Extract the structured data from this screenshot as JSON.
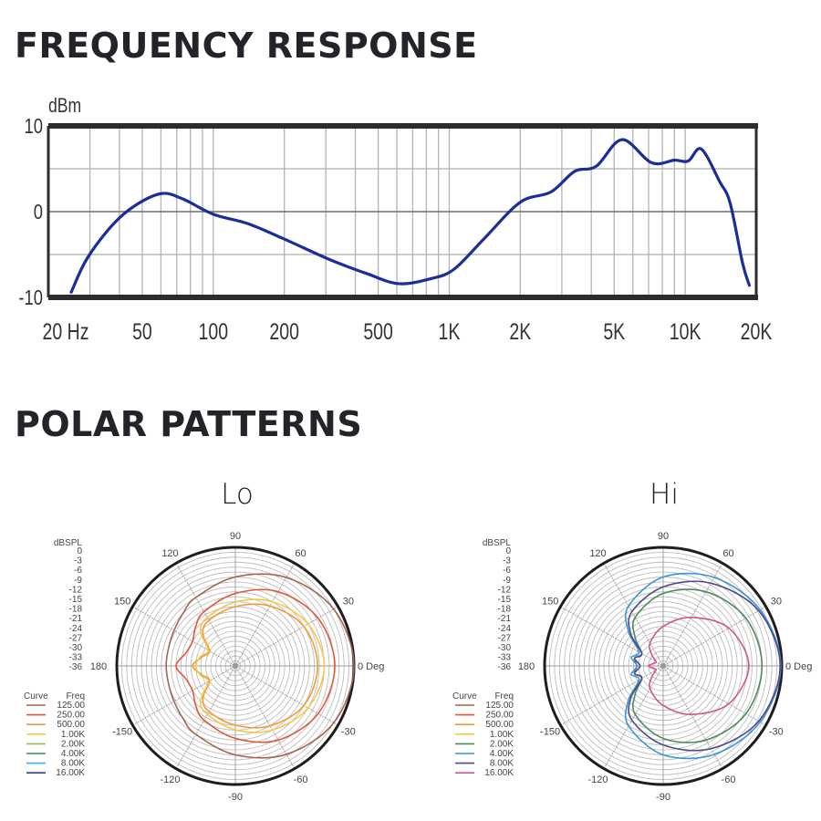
{
  "headings": {
    "frequency": "FREQUENCY RESPONSE",
    "polar": "POLAR PATTERNS"
  },
  "chart_data": [
    {
      "type": "line",
      "title": "FREQUENCY RESPONSE",
      "xlabel": "",
      "ylabel": "dBm",
      "xscale": "log",
      "xlim": [
        20,
        20000
      ],
      "ylim": [
        -10,
        10
      ],
      "grid": true,
      "yticks": [
        {
          "v": 10,
          "label": "10"
        },
        {
          "v": 0,
          "label": "0"
        },
        {
          "v": -10,
          "label": "-10"
        }
      ],
      "xticks": [
        {
          "v": 20,
          "label": "20 Hz"
        },
        {
          "v": 50,
          "label": "50"
        },
        {
          "v": 100,
          "label": "100"
        },
        {
          "v": 200,
          "label": "200"
        },
        {
          "v": 500,
          "label": "500"
        },
        {
          "v": 1000,
          "label": "1K"
        },
        {
          "v": 2000,
          "label": "2K"
        },
        {
          "v": 5000,
          "label": "5K"
        },
        {
          "v": 10000,
          "label": "10K"
        },
        {
          "v": 20000,
          "label": "20K"
        }
      ],
      "color": "#1a2d9a",
      "x": [
        25,
        29,
        37,
        46,
        60,
        74,
        100,
        140,
        200,
        312,
        445,
        610,
        840,
        1050,
        1400,
        2000,
        2700,
        3400,
        4200,
        5400,
        7200,
        9000,
        10300,
        11700,
        14000,
        15500,
        17500,
        18700
      ],
      "y": [
        -9.4,
        -5.6,
        -1.7,
        0.6,
        2.1,
        1.5,
        -0.3,
        -1.4,
        -3.2,
        -5.6,
        -7.2,
        -8.4,
        -7.8,
        -6.7,
        -3.2,
        1.1,
        2.3,
        4.7,
        5.3,
        8.4,
        5.7,
        6.0,
        5.9,
        7.3,
        3.5,
        1.0,
        -6.0,
        -8.6
      ]
    },
    {
      "type": "polar",
      "title": "Lo",
      "radial_label": "dBSPL",
      "radial_ticks": [
        "0",
        "-3",
        "-6",
        "-9",
        "-12",
        "-15",
        "-18",
        "-21",
        "-24",
        "-27",
        "-30",
        "-33",
        "-36"
      ],
      "rlim": [
        -36,
        0
      ],
      "angle_labels": [
        {
          "a": 90,
          "label": "90"
        },
        {
          "a": 60,
          "label": "60"
        },
        {
          "a": 30,
          "label": "30"
        },
        {
          "a": 0,
          "label": "0 Deg"
        },
        {
          "a": -30,
          "label": "-30"
        },
        {
          "a": -60,
          "label": "-60"
        },
        {
          "a": -90,
          "label": "-90"
        },
        {
          "a": -120,
          "label": "-120"
        },
        {
          "a": -150,
          "label": "-150"
        },
        {
          "a": 180,
          "label": "180"
        },
        {
          "a": 150,
          "label": "150"
        },
        {
          "a": 120,
          "label": "120"
        }
      ],
      "legend_header": [
        "Curve",
        "Freq"
      ],
      "legend": [
        {
          "freq": "125.00",
          "color": "#a4654f"
        },
        {
          "freq": "250.00",
          "color": "#e25638"
        },
        {
          "freq": "500.00",
          "color": "#f49a3c"
        },
        {
          "freq": "1.00K",
          "color": "#f6c84a"
        },
        {
          "freq": "2.00K",
          "color": "#8cc152"
        },
        {
          "freq": "4.00K",
          "color": "#3e8a66"
        },
        {
          "freq": "8.00K",
          "color": "#3ab0e2"
        },
        {
          "freq": "16.00K",
          "color": "#3b3f82"
        }
      ],
      "angles": [
        0,
        30,
        60,
        90,
        120,
        135,
        150,
        165,
        180
      ],
      "series": [
        {
          "name": "125.00",
          "color": "#a4654f",
          "values": [
            0,
            -1.5,
            -5,
            -9,
            -12,
            -13.5,
            -14.5,
            -15,
            -15
          ]
        },
        {
          "name": "250.00",
          "color": "#e25638",
          "values": [
            -5.8,
            -7,
            -10,
            -14,
            -17,
            -19,
            -21,
            -20.5,
            -18
          ]
        },
        {
          "name": "500.00",
          "color": "#f49a3c",
          "values": [
            -11,
            -12,
            -15,
            -18,
            -20,
            -22,
            -27,
            -25.5,
            -23
          ]
        },
        {
          "name": "1.00K",
          "color": "#f6c84a",
          "values": [
            -9,
            -10.5,
            -13.5,
            -16.6,
            -19,
            -21,
            -26.5,
            -25,
            -24
          ]
        }
      ]
    },
    {
      "type": "polar",
      "title": "Hi",
      "radial_label": "dBSPL",
      "radial_ticks": [
        "0",
        "-3",
        "-6",
        "-9",
        "-12",
        "-15",
        "-18",
        "-21",
        "-24",
        "-27",
        "-30",
        "-33",
        "-36"
      ],
      "rlim": [
        -36,
        0
      ],
      "angle_labels": [
        {
          "a": 90,
          "label": "90"
        },
        {
          "a": 60,
          "label": "60"
        },
        {
          "a": 30,
          "label": "30"
        },
        {
          "a": 0,
          "label": "0 Deg"
        },
        {
          "a": -30,
          "label": "-30"
        },
        {
          "a": -60,
          "label": "-60"
        },
        {
          "a": -90,
          "label": "-90"
        },
        {
          "a": -120,
          "label": "-120"
        },
        {
          "a": -150,
          "label": "-150"
        },
        {
          "a": 180,
          "label": "180"
        },
        {
          "a": 150,
          "label": "150"
        },
        {
          "a": 120,
          "label": "120"
        }
      ],
      "legend_header": [
        "Curve",
        "Freq"
      ],
      "legend": [
        {
          "freq": "125.00",
          "color": "#a4654f"
        },
        {
          "freq": "250.00",
          "color": "#e25638"
        },
        {
          "freq": "500.00",
          "color": "#f49a3c"
        },
        {
          "freq": "1.00K",
          "color": "#f6c84a"
        },
        {
          "freq": "2.00K",
          "color": "#4a8a5e"
        },
        {
          "freq": "4.00K",
          "color": "#3a94d8"
        },
        {
          "freq": "8.00K",
          "color": "#4e4a8a"
        },
        {
          "freq": "16.00K",
          "color": "#d0558f"
        }
      ],
      "angles": [
        0,
        30,
        60,
        90,
        120,
        135,
        150,
        165,
        180
      ],
      "series": [
        {
          "name": "2.00K",
          "color": "#4a8a5e",
          "values": [
            -6,
            -7,
            -10,
            -14,
            -19,
            -24,
            -28.5,
            -27,
            -28
          ]
        },
        {
          "name": "4.00K",
          "color": "#3a94d8",
          "values": [
            -0.3,
            -2,
            -5,
            -9,
            -15,
            -21,
            -27.5,
            -26,
            -28
          ]
        },
        {
          "name": "8.00K",
          "color": "#4e4a8a",
          "values": [
            -0.5,
            -2.5,
            -7,
            -12,
            -17,
            -22,
            -28.5,
            -27,
            -29
          ]
        },
        {
          "name": "16.00K",
          "color": "#d0558f",
          "values": [
            -10,
            -13,
            -19,
            -24,
            -28,
            -31,
            -33.5,
            -33,
            -31.5
          ]
        }
      ]
    }
  ]
}
